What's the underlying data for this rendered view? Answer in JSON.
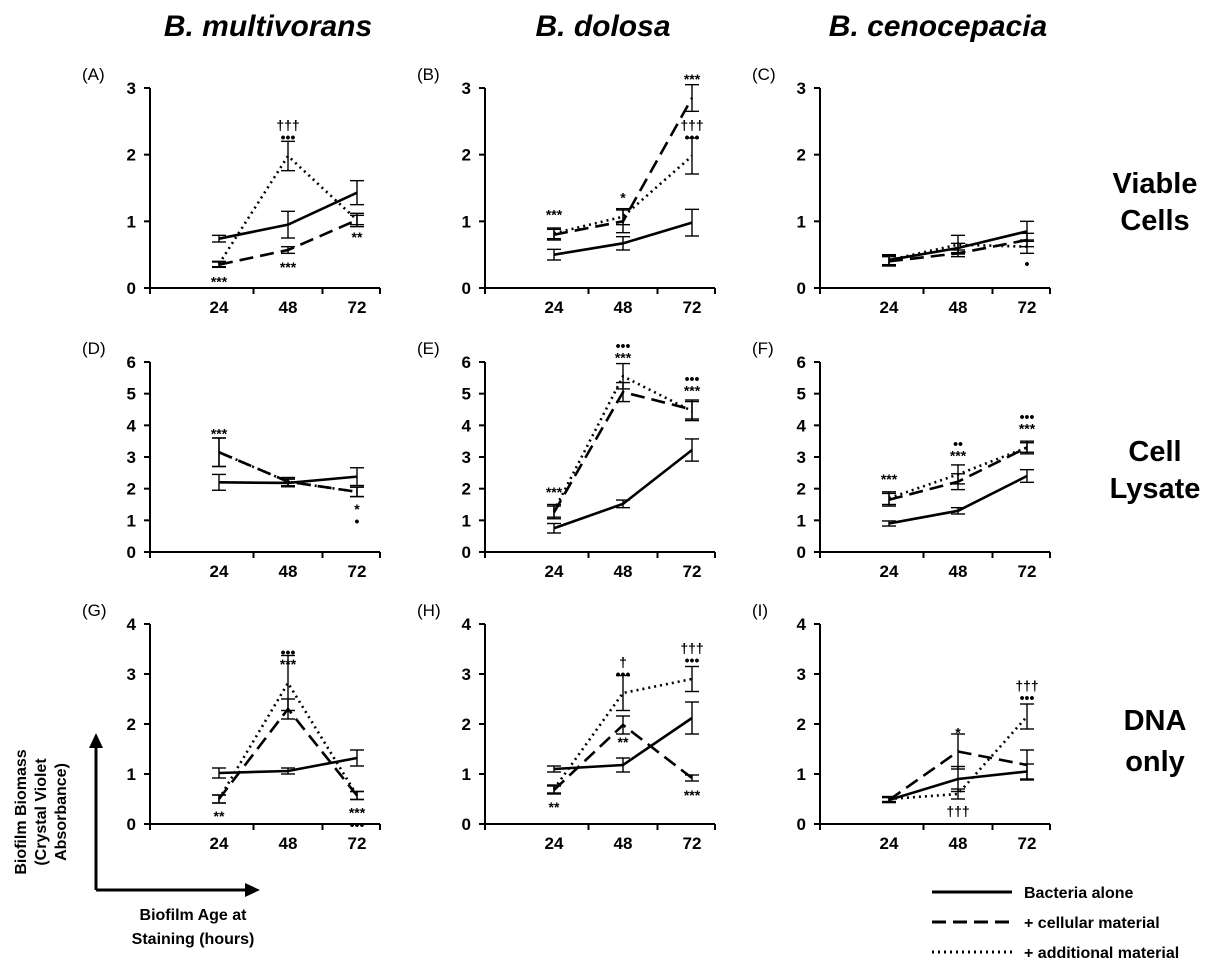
{
  "column_titles": [
    "B. multivorans",
    "B. dolosa",
    "B. cenocepacia"
  ],
  "row_labels": [
    [
      "Viable",
      "Cells"
    ],
    [
      "Cell",
      "Lysate"
    ],
    [
      "DNA",
      "only"
    ]
  ],
  "axis_caption": {
    "y": [
      "Biofilm Biomass",
      "(Crystal Violet",
      "Absorbance)"
    ],
    "x": [
      "Biofilm Age at",
      "Staining (hours)"
    ]
  },
  "legend": [
    {
      "label": "Bacteria alone",
      "dash": "solid"
    },
    {
      "label": "+ cellular material",
      "dash": "dashed"
    },
    {
      "label": "+ additional material",
      "dash": "dotted"
    }
  ],
  "chart_data": [
    {
      "type": "line",
      "panel": "(A)",
      "categories": [
        "24",
        "48",
        "72"
      ],
      "ylim": [
        0,
        3
      ],
      "yticks": [
        0,
        1,
        2,
        3
      ],
      "series": [
        {
          "name": "Bacteria alone",
          "values": [
            0.74,
            0.95,
            1.43
          ],
          "errors": [
            0.05,
            0.2,
            0.18
          ]
        },
        {
          "name": "+ cellular material",
          "values": [
            0.35,
            0.57,
            1.02
          ],
          "errors": [
            0.04,
            0.05,
            0.07
          ]
        },
        {
          "name": "+ additional material",
          "values": [
            0.36,
            1.98,
            1.02
          ],
          "errors": [
            0.04,
            0.22,
            0.1
          ]
        }
      ],
      "annotations": [
        {
          "x": "24",
          "y": 0.35,
          "pos": "below",
          "lines": [
            "***"
          ]
        },
        {
          "x": "48",
          "y": 1.98,
          "pos": "above",
          "lines": [
            "†††",
            "•••"
          ]
        },
        {
          "x": "48",
          "y": 0.57,
          "pos": "below",
          "lines": [
            "***"
          ]
        },
        {
          "x": "72",
          "y": 1.02,
          "pos": "below",
          "lines": [
            "**"
          ]
        }
      ]
    },
    {
      "type": "line",
      "panel": "(B)",
      "categories": [
        "24",
        "48",
        "72"
      ],
      "ylim": [
        0,
        3
      ],
      "yticks": [
        0,
        1,
        2,
        3
      ],
      "series": [
        {
          "name": "Bacteria alone",
          "values": [
            0.5,
            0.67,
            0.98
          ],
          "errors": [
            0.08,
            0.1,
            0.2
          ]
        },
        {
          "name": "+ cellular material",
          "values": [
            0.8,
            1.0,
            2.85
          ],
          "errors": [
            0.08,
            0.17,
            0.2
          ]
        },
        {
          "name": "+ additional material",
          "values": [
            0.82,
            1.07,
            1.98
          ],
          "errors": [
            0.08,
            0.12,
            0.27
          ]
        }
      ],
      "annotations": [
        {
          "x": "24",
          "y": 0.82,
          "pos": "above",
          "lines": [
            "***"
          ]
        },
        {
          "x": "48",
          "y": 1.07,
          "pos": "above",
          "lines": [
            "*"
          ]
        },
        {
          "x": "72",
          "y": 2.85,
          "pos": "above",
          "lines": [
            "***"
          ]
        },
        {
          "x": "72",
          "y": 1.98,
          "pos": "above",
          "lines": [
            "†††",
            "•••"
          ]
        }
      ]
    },
    {
      "type": "line",
      "panel": "(C)",
      "categories": [
        "24",
        "48",
        "72"
      ],
      "ylim": [
        0,
        3
      ],
      "yticks": [
        0,
        1,
        2,
        3
      ],
      "series": [
        {
          "name": "Bacteria alone",
          "values": [
            0.42,
            0.6,
            0.85
          ],
          "errors": [
            0.08,
            0.07,
            0.15
          ]
        },
        {
          "name": "+ cellular material",
          "values": [
            0.4,
            0.52,
            0.72
          ],
          "errors": [
            0.07,
            0.05,
            0.1
          ]
        },
        {
          "name": "+ additional material",
          "values": [
            0.42,
            0.65,
            0.62
          ],
          "errors": [
            0.07,
            0.14,
            0.1
          ]
        }
      ],
      "annotations": [
        {
          "x": "72",
          "y": 0.62,
          "pos": "below",
          "lines": [
            "•"
          ]
        }
      ]
    },
    {
      "type": "line",
      "panel": "(D)",
      "categories": [
        "24",
        "48",
        "72"
      ],
      "ylim": [
        0,
        6
      ],
      "yticks": [
        0,
        1,
        2,
        3,
        4,
        5,
        6
      ],
      "series": [
        {
          "name": "Bacteria alone",
          "values": [
            2.2,
            2.18,
            2.38
          ],
          "errors": [
            0.25,
            0.12,
            0.28
          ]
        },
        {
          "name": "+ cellular material",
          "values": [
            3.15,
            2.22,
            1.9
          ],
          "errors": [
            0.45,
            0.13,
            0.15
          ]
        },
        {
          "name": "+ additional material",
          "values": [
            3.15,
            2.22,
            1.9
          ],
          "errors": [
            0.45,
            0.13,
            0.15
          ]
        }
      ],
      "annotations": [
        {
          "x": "24",
          "y": 3.15,
          "pos": "above",
          "lines": [
            "***"
          ]
        },
        {
          "x": "72",
          "y": 1.9,
          "pos": "below",
          "lines": [
            "*",
            "•"
          ]
        }
      ]
    },
    {
      "type": "line",
      "panel": "(E)",
      "categories": [
        "24",
        "48",
        "72"
      ],
      "ylim": [
        0,
        6
      ],
      "yticks": [
        0,
        1,
        2,
        3,
        4,
        5,
        6
      ],
      "series": [
        {
          "name": "Bacteria alone",
          "values": [
            0.75,
            1.52,
            3.22
          ],
          "errors": [
            0.15,
            0.12,
            0.35
          ]
        },
        {
          "name": "+ cellular material",
          "values": [
            1.25,
            5.05,
            4.5
          ],
          "errors": [
            0.2,
            0.3,
            0.3
          ]
        },
        {
          "name": "+ additional material",
          "values": [
            1.3,
            5.55,
            4.45
          ],
          "errors": [
            0.2,
            0.4,
            0.3
          ]
        }
      ],
      "annotations": [
        {
          "x": "24",
          "y": 1.3,
          "pos": "above",
          "lines": [
            "***"
          ]
        },
        {
          "x": "48",
          "y": 5.55,
          "pos": "above",
          "lines": [
            "•••",
            "***"
          ]
        },
        {
          "x": "72",
          "y": 4.5,
          "pos": "above",
          "lines": [
            "•••",
            "***"
          ]
        }
      ]
    },
    {
      "type": "line",
      "panel": "(F)",
      "categories": [
        "24",
        "48",
        "72"
      ],
      "ylim": [
        0,
        6
      ],
      "yticks": [
        0,
        1,
        2,
        3,
        4,
        5,
        6
      ],
      "series": [
        {
          "name": "Bacteria alone",
          "values": [
            0.9,
            1.3,
            2.4
          ],
          "errors": [
            0.08,
            0.1,
            0.2
          ]
        },
        {
          "name": "+ cellular material",
          "values": [
            1.65,
            2.22,
            3.3
          ],
          "errors": [
            0.2,
            0.25,
            0.15
          ]
        },
        {
          "name": "+ additional material",
          "values": [
            1.7,
            2.45,
            3.3
          ],
          "errors": [
            0.2,
            0.3,
            0.2
          ]
        }
      ],
      "annotations": [
        {
          "x": "24",
          "y": 1.7,
          "pos": "above",
          "lines": [
            "***"
          ]
        },
        {
          "x": "48",
          "y": 2.45,
          "pos": "above",
          "lines": [
            "••",
            "***"
          ]
        },
        {
          "x": "72",
          "y": 3.3,
          "pos": "above",
          "lines": [
            "•••",
            "***"
          ]
        }
      ]
    },
    {
      "type": "line",
      "panel": "(G)",
      "categories": [
        "24",
        "48",
        "72"
      ],
      "ylim": [
        0,
        4
      ],
      "yticks": [
        0,
        1,
        2,
        3,
        4
      ],
      "series": [
        {
          "name": "Bacteria alone",
          "values": [
            1.02,
            1.06,
            1.32
          ],
          "errors": [
            0.1,
            0.06,
            0.16
          ]
        },
        {
          "name": "+ cellular material",
          "values": [
            0.5,
            2.3,
            0.57
          ],
          "errors": [
            0.08,
            0.2,
            0.08
          ]
        },
        {
          "name": "+ additional material",
          "values": [
            0.5,
            2.82,
            0.57
          ],
          "errors": [
            0.08,
            0.55,
            0.08
          ]
        }
      ],
      "annotations": [
        {
          "x": "24",
          "y": 0.5,
          "pos": "below",
          "lines": [
            "**"
          ]
        },
        {
          "x": "48",
          "y": 2.82,
          "pos": "above",
          "lines": [
            "•••",
            "***"
          ]
        },
        {
          "x": "72",
          "y": 0.57,
          "pos": "below",
          "lines": [
            "***",
            "•••"
          ]
        }
      ]
    },
    {
      "type": "line",
      "panel": "(H)",
      "categories": [
        "24",
        "48",
        "72"
      ],
      "ylim": [
        0,
        4
      ],
      "yticks": [
        0,
        1,
        2,
        3,
        4
      ],
      "series": [
        {
          "name": "Bacteria alone",
          "values": [
            1.1,
            1.18,
            2.12
          ],
          "errors": [
            0.06,
            0.14,
            0.32
          ]
        },
        {
          "name": "+ cellular material",
          "values": [
            0.68,
            1.98,
            0.92
          ],
          "errors": [
            0.08,
            0.18,
            0.06
          ]
        },
        {
          "name": "+ additional material",
          "values": [
            0.7,
            2.62,
            2.9
          ],
          "errors": [
            0.08,
            0.35,
            0.25
          ]
        }
      ],
      "annotations": [
        {
          "x": "24",
          "y": 0.68,
          "pos": "below",
          "lines": [
            "**"
          ]
        },
        {
          "x": "48",
          "y": 2.62,
          "pos": "above",
          "lines": [
            "†",
            "•••"
          ]
        },
        {
          "x": "48",
          "y": 1.98,
          "pos": "below",
          "lines": [
            "**"
          ]
        },
        {
          "x": "72",
          "y": 2.9,
          "pos": "above",
          "lines": [
            "†††",
            "•••"
          ]
        },
        {
          "x": "72",
          "y": 0.92,
          "pos": "below",
          "lines": [
            "***"
          ]
        }
      ]
    },
    {
      "type": "line",
      "panel": "(I)",
      "categories": [
        "24",
        "48",
        "72"
      ],
      "ylim": [
        0,
        4
      ],
      "yticks": [
        0,
        1,
        2,
        3,
        4
      ],
      "series": [
        {
          "name": "Bacteria alone",
          "values": [
            0.48,
            0.9,
            1.05
          ],
          "errors": [
            0.05,
            0.25,
            0.15
          ]
        },
        {
          "name": "+ cellular material",
          "values": [
            0.48,
            1.45,
            1.18
          ],
          "errors": [
            0.05,
            0.35,
            0.3
          ]
        },
        {
          "name": "+ additional material",
          "values": [
            0.5,
            0.6,
            2.15
          ],
          "errors": [
            0.05,
            0.1,
            0.25
          ]
        }
      ],
      "annotations": [
        {
          "x": "48",
          "y": 1.45,
          "pos": "above",
          "lines": [
            "*"
          ]
        },
        {
          "x": "48",
          "y": 0.6,
          "pos": "below",
          "lines": [
            "†††"
          ]
        },
        {
          "x": "72",
          "y": 2.15,
          "pos": "above",
          "lines": [
            "†††",
            "•••"
          ]
        }
      ]
    }
  ]
}
